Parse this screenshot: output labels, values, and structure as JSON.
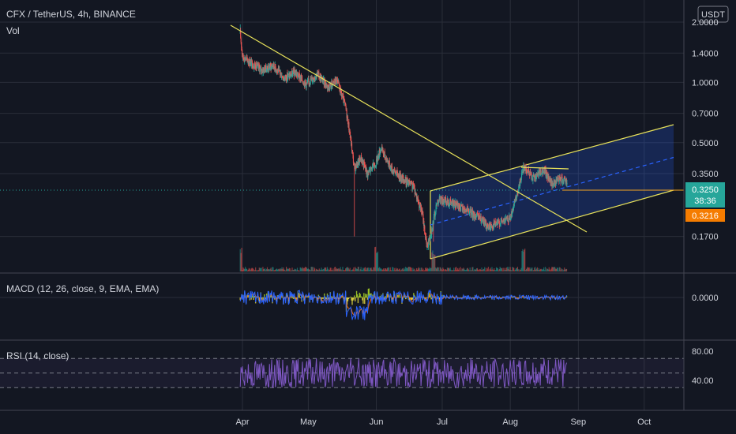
{
  "header": {
    "symbol_line": "CFX / TetherUS, 4h, BINANCE",
    "vol_label": "Vol",
    "currency_badge": "USDT"
  },
  "colors": {
    "background": "#131722",
    "grid": "#2a2e39",
    "text": "#d1d4dc",
    "up": "#26a69a",
    "down": "#ef5350",
    "trendline": "#e8e25a",
    "channel_fill": "#2962ff",
    "channel_mid": "#2962ff",
    "macd_line": "#2962ff",
    "signal_line": "#ff6d00",
    "rsi_line": "#7e57c2",
    "price_badge": "#26a69a",
    "level_badge": "#f57c00"
  },
  "chart_data": [
    {
      "type": "candlestick",
      "scale": "log",
      "x_ticks": [
        "Apr",
        "May",
        "Jun",
        "Jul",
        "Aug",
        "Sep",
        "Oct"
      ],
      "y_ticks": [
        2.0,
        1.4,
        1.0,
        0.7,
        0.5,
        0.35,
        0.17
      ],
      "y_tick_labels": [
        "2.0000",
        "1.4000",
        "1.0000",
        "0.7000",
        "0.5000",
        "0.3500",
        "0.1700"
      ],
      "ylim": [
        0.12,
        2.0
      ],
      "close_path": [
        [
          "Mar 31",
          1.75
        ],
        [
          "Apr 1",
          1.35
        ],
        [
          "Apr 5",
          1.25
        ],
        [
          "Apr 10",
          1.15
        ],
        [
          "Apr 15",
          1.22
        ],
        [
          "Apr 20",
          1.05
        ],
        [
          "Apr 25",
          1.12
        ],
        [
          "Apr 30",
          0.98
        ],
        [
          "May 5",
          1.1
        ],
        [
          "May 10",
          0.95
        ],
        [
          "May 14",
          1.02
        ],
        [
          "May 18",
          0.75
        ],
        [
          "May 20",
          0.55
        ],
        [
          "May 22",
          0.37
        ],
        [
          "May 25",
          0.42
        ],
        [
          "May 28",
          0.35
        ],
        [
          "Jun 1",
          0.4
        ],
        [
          "Jun 3",
          0.47
        ],
        [
          "Jun 8",
          0.37
        ],
        [
          "Jun 13",
          0.33
        ],
        [
          "Jun 18",
          0.3
        ],
        [
          "Jun 22",
          0.22
        ],
        [
          "Jun 24",
          0.15
        ],
        [
          "Jun 26",
          0.18
        ],
        [
          "Jun 29",
          0.26
        ],
        [
          "Jul 5",
          0.25
        ],
        [
          "Jul 12",
          0.23
        ],
        [
          "Jul 18",
          0.21
        ],
        [
          "Jul 22",
          0.19
        ],
        [
          "Jul 27",
          0.2
        ],
        [
          "Aug 1",
          0.21
        ],
        [
          "Aug 4",
          0.27
        ],
        [
          "Aug 7",
          0.38
        ],
        [
          "Aug 12",
          0.33
        ],
        [
          "Aug 16",
          0.37
        ],
        [
          "Aug 20",
          0.31
        ],
        [
          "Aug 24",
          0.33
        ],
        [
          "Aug 27",
          0.3216
        ]
      ],
      "current_price": "0.3250",
      "countdown": "38:36",
      "horizontal_level": "0.3216",
      "volume_spikes": [
        "Mar 31",
        "Jun 1",
        "Jun 27",
        "Aug 7",
        "Aug 28"
      ]
    },
    {
      "type": "line",
      "indicator": "MACD",
      "label": "MACD (12, 26, close, 9, EMA, EMA)",
      "y_ticks": [
        0.0
      ],
      "y_tick_labels": [
        "0.0000"
      ]
    },
    {
      "type": "line",
      "indicator": "RSI",
      "label": "RSI (14, close)",
      "y_ticks": [
        80,
        40
      ],
      "y_tick_labels": [
        "80.00",
        "40.00"
      ],
      "bands": [
        70,
        30
      ],
      "midline": 50
    }
  ]
}
